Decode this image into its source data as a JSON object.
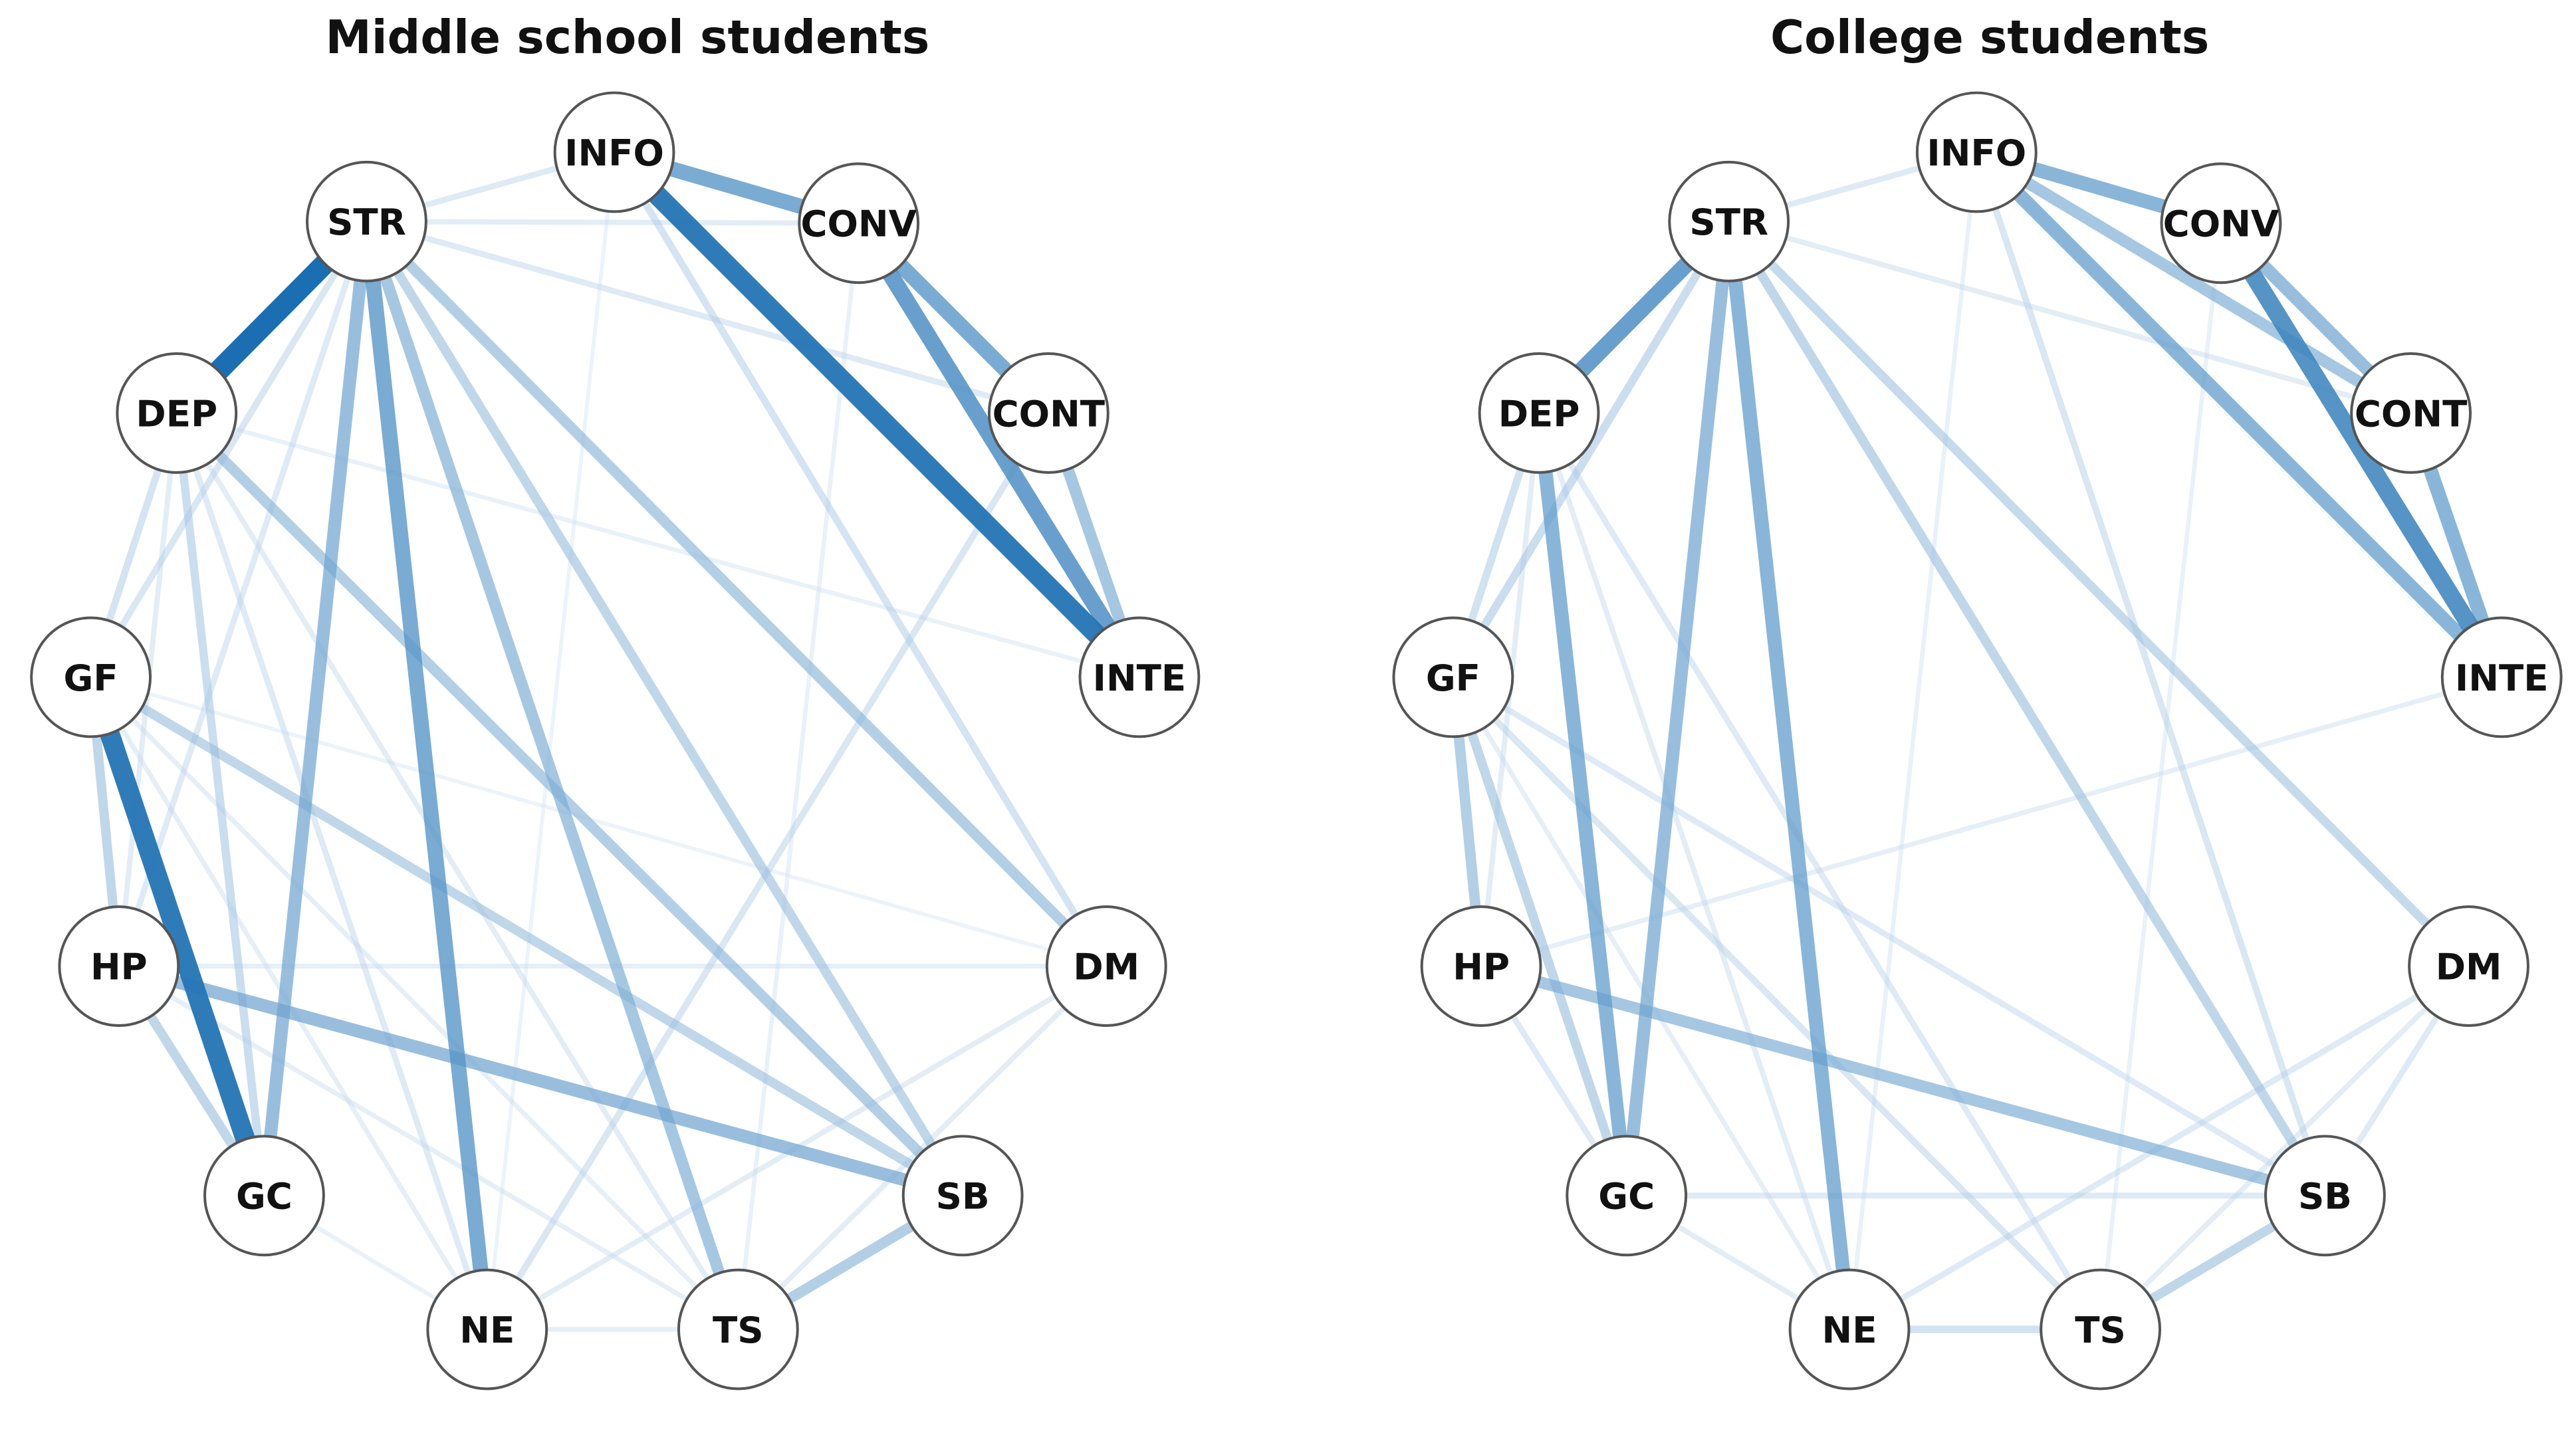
{
  "chart_data": [
    {
      "type": "network",
      "title": "Middle school students",
      "nodes": [
        "INFO",
        "CONV",
        "STR",
        "CONT",
        "DEP",
        "GF",
        "INTE",
        "HP",
        "DM",
        "GC",
        "SB",
        "NE",
        "TS"
      ],
      "edges": [
        [
          "INFO",
          "CONV",
          0.55
        ],
        [
          "INFO",
          "INTE",
          0.75
        ],
        [
          "CONV",
          "CONT",
          0.55
        ],
        [
          "CONV",
          "INTE",
          0.6
        ],
        [
          "CONT",
          "INTE",
          0.4
        ],
        [
          "STR",
          "DEP",
          0.8
        ],
        [
          "STR",
          "GC",
          0.45
        ],
        [
          "STR",
          "NE",
          0.55
        ],
        [
          "STR",
          "TS",
          0.4
        ],
        [
          "STR",
          "SB",
          0.3
        ],
        [
          "STR",
          "DM",
          0.35
        ],
        [
          "GF",
          "GC",
          0.75
        ],
        [
          "GF",
          "HP",
          0.3
        ],
        [
          "HP",
          "GC",
          0.3
        ],
        [
          "HP",
          "SB",
          0.45
        ],
        [
          "DEP",
          "SB",
          0.35
        ],
        [
          "GF",
          "SB",
          0.3
        ],
        [
          "SB",
          "TS",
          0.35
        ],
        [
          "DEP",
          "GC",
          0.25
        ],
        [
          "DEP",
          "GF",
          0.2
        ],
        [
          "STR",
          "INFO",
          0.15
        ],
        [
          "STR",
          "CONV",
          0.12
        ],
        [
          "STR",
          "CONT",
          0.15
        ],
        [
          "INFO",
          "DM",
          0.2
        ],
        [
          "CONT",
          "NE",
          0.18
        ],
        [
          "STR",
          "GF",
          0.18
        ],
        [
          "STR",
          "HP",
          0.15
        ],
        [
          "DEP",
          "NE",
          0.15
        ],
        [
          "DEP",
          "TS",
          0.12
        ],
        [
          "HP",
          "DM",
          0.1
        ],
        [
          "NE",
          "TS",
          0.1
        ],
        [
          "NE",
          "DM",
          0.12
        ],
        [
          "TS",
          "DM",
          0.12
        ],
        [
          "GC",
          "NE",
          0.08
        ],
        [
          "GF",
          "NE",
          0.1
        ],
        [
          "GF",
          "TS",
          0.1
        ],
        [
          "HP",
          "TS",
          0.1
        ],
        [
          "INFO",
          "NE",
          0.06
        ],
        [
          "DEP",
          "INTE",
          0.08
        ],
        [
          "GF",
          "DM",
          0.06
        ],
        [
          "CONV",
          "TS",
          0.08
        ],
        [
          "DEP",
          "HP",
          0.12
        ]
      ]
    },
    {
      "type": "network",
      "title": "College students",
      "nodes": [
        "INFO",
        "CONV",
        "STR",
        "CONT",
        "DEP",
        "GF",
        "INTE",
        "HP",
        "DM",
        "GC",
        "SB",
        "NE",
        "TS"
      ],
      "edges": [
        [
          "INFO",
          "CONV",
          0.5
        ],
        [
          "INFO",
          "CONT",
          0.4
        ],
        [
          "INFO",
          "INTE",
          0.5
        ],
        [
          "CONV",
          "INTE",
          0.65
        ],
        [
          "CONV",
          "CONT",
          0.45
        ],
        [
          "CONT",
          "INTE",
          0.5
        ],
        [
          "STR",
          "DEP",
          0.6
        ],
        [
          "STR",
          "GC",
          0.45
        ],
        [
          "STR",
          "NE",
          0.5
        ],
        [
          "STR",
          "SB",
          0.3
        ],
        [
          "STR",
          "DM",
          0.28
        ],
        [
          "STR",
          "INFO",
          0.15
        ],
        [
          "STR",
          "GF",
          0.25
        ],
        [
          "DEP",
          "GC",
          0.5
        ],
        [
          "DEP",
          "GF",
          0.22
        ],
        [
          "GF",
          "HP",
          0.35
        ],
        [
          "GF",
          "GC",
          0.3
        ],
        [
          "HP",
          "SB",
          0.4
        ],
        [
          "SB",
          "TS",
          0.3
        ],
        [
          "NE",
          "TS",
          0.22
        ],
        [
          "GC",
          "SB",
          0.15
        ],
        [
          "NE",
          "DM",
          0.15
        ],
        [
          "TS",
          "DM",
          0.12
        ],
        [
          "SB",
          "DM",
          0.15
        ],
        [
          "INFO",
          "SB",
          0.18
        ],
        [
          "STR",
          "CONT",
          0.12
        ],
        [
          "HP",
          "INTE",
          0.1
        ],
        [
          "DEP",
          "TS",
          0.15
        ],
        [
          "GF",
          "TS",
          0.18
        ],
        [
          "GF",
          "SB",
          0.15
        ],
        [
          "GC",
          "NE",
          0.12
        ],
        [
          "DEP",
          "NE",
          0.12
        ],
        [
          "INFO",
          "NE",
          0.08
        ],
        [
          "CONV",
          "TS",
          0.08
        ],
        [
          "HP",
          "GC",
          0.15
        ],
        [
          "DEP",
          "HP",
          0.12
        ],
        [
          "GF",
          "NE",
          0.1
        ]
      ]
    }
  ]
}
